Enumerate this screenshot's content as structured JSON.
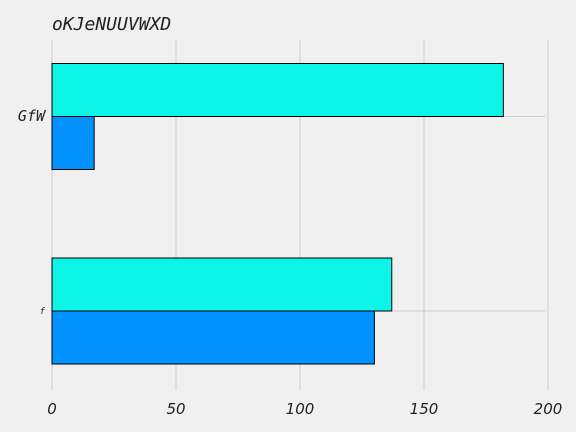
{
  "chart_data": {
    "type": "bar",
    "orientation": "horizontal",
    "title": "oKJeNUUVWXD",
    "categories": [
      "GfW",
      "f"
    ],
    "series": [
      {
        "values": [
          182,
          137
        ],
        "color": "#0cf5e6"
      },
      {
        "values": [
          17,
          130
        ],
        "color": "#0092ff"
      }
    ],
    "xticks": [
      "0",
      "50",
      "100",
      "150",
      "200"
    ],
    "xlim": [
      0,
      200
    ],
    "grid": true
  }
}
